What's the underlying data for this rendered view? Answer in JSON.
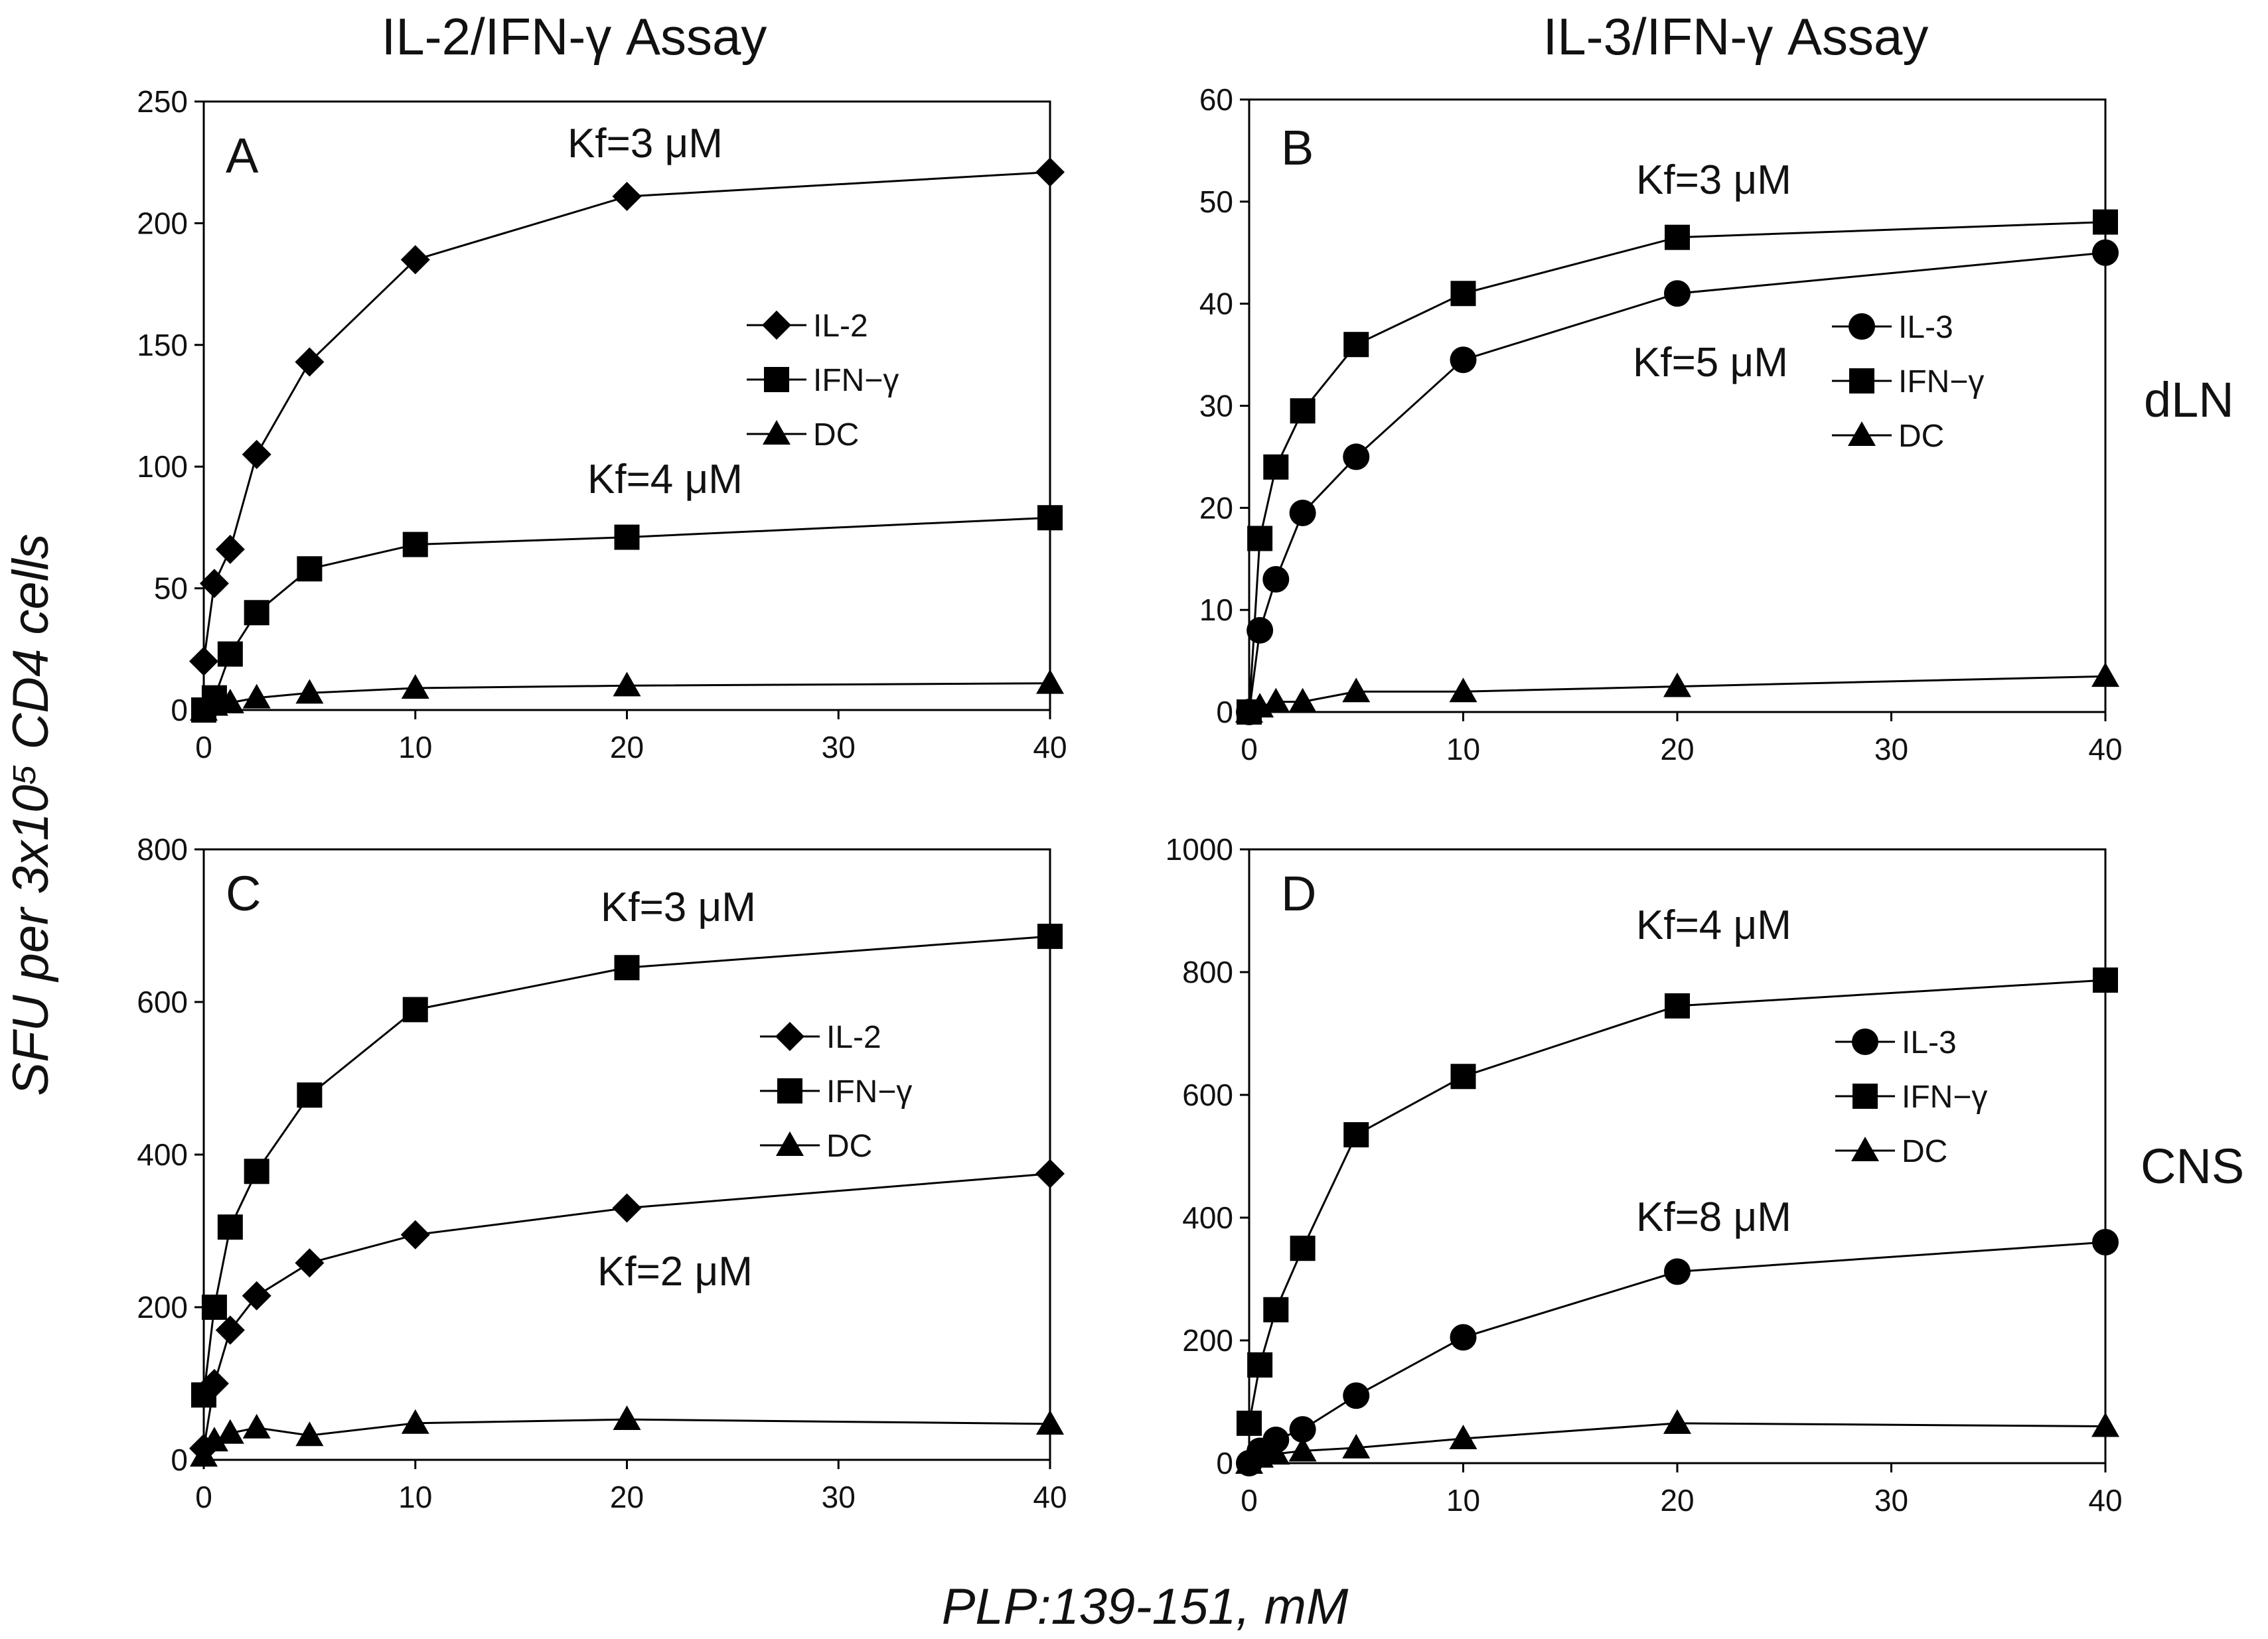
{
  "figure": {
    "column_titles": [
      "IL-2/IFN-γ Assay",
      "IL-3/IFN-γ Assay"
    ],
    "row_labels": [
      "dLN",
      "CNS"
    ],
    "ylabel": "SFU per 3x10⁵ CD4 cells",
    "xlabel": "PLP:139-151, mM"
  },
  "chart_data": [
    {
      "type": "line",
      "panel": "A",
      "x_ticks": [
        0,
        10,
        20,
        30,
        40
      ],
      "y_ticks": [
        0,
        50,
        100,
        150,
        200,
        250
      ],
      "xlim": [
        0,
        40
      ],
      "ylim": [
        0,
        250
      ],
      "series": [
        {
          "name": "IL-2",
          "marker": "diamond",
          "x": [
            0,
            0.5,
            1.25,
            2.5,
            5,
            10,
            20,
            40
          ],
          "y": [
            20,
            52,
            66,
            105,
            143,
            185,
            211,
            221
          ]
        },
        {
          "name": "IFN−γ",
          "marker": "square",
          "x": [
            0,
            0.5,
            1.25,
            2.5,
            5,
            10,
            20,
            40
          ],
          "y": [
            0,
            5,
            23,
            40,
            58,
            68,
            71,
            79
          ]
        },
        {
          "name": "DC",
          "marker": "triangle",
          "x": [
            0,
            0.5,
            1.25,
            2.5,
            5,
            10,
            20,
            40
          ],
          "y": [
            0,
            2,
            3,
            5,
            7,
            9,
            10,
            11
          ]
        }
      ],
      "annotations": [
        "Kf=3 μM",
        "Kf=4 μM"
      ]
    },
    {
      "type": "line",
      "panel": "B",
      "x_ticks": [
        0,
        10,
        20,
        30,
        40
      ],
      "y_ticks": [
        0,
        10,
        20,
        30,
        40,
        50,
        60
      ],
      "xlim": [
        0,
        40
      ],
      "ylim": [
        0,
        60
      ],
      "series": [
        {
          "name": "IL-3",
          "marker": "circle",
          "x": [
            0,
            0.5,
            1.25,
            2.5,
            5,
            10,
            20,
            40
          ],
          "y": [
            0,
            8,
            13,
            19.5,
            25,
            34.5,
            41,
            45
          ]
        },
        {
          "name": "IFN−γ",
          "marker": "square",
          "x": [
            0,
            0.5,
            1.25,
            2.5,
            5,
            10,
            20,
            40
          ],
          "y": [
            0,
            17,
            24,
            29.5,
            36,
            41,
            46.5,
            48
          ]
        },
        {
          "name": "DC",
          "marker": "triangle",
          "x": [
            0,
            0.5,
            1.25,
            2.5,
            5,
            10,
            20,
            40
          ],
          "y": [
            0,
            0.5,
            1,
            1,
            2,
            2,
            2.5,
            3.5
          ]
        }
      ],
      "annotations": [
        "Kf=3 μM",
        "Kf=5 μM"
      ]
    },
    {
      "type": "line",
      "panel": "C",
      "x_ticks": [
        0,
        10,
        20,
        30,
        40
      ],
      "y_ticks": [
        0,
        200,
        400,
        600,
        800
      ],
      "xlim": [
        0,
        40
      ],
      "ylim": [
        0,
        800
      ],
      "series": [
        {
          "name": "IL-2",
          "marker": "diamond",
          "x": [
            0,
            0.5,
            1.25,
            2.5,
            5,
            10,
            20,
            40
          ],
          "y": [
            15,
            100,
            170,
            215,
            258,
            295,
            330,
            375
          ]
        },
        {
          "name": "IFN−γ",
          "marker": "square",
          "x": [
            0,
            0.5,
            1.25,
            2.5,
            5,
            10,
            20,
            40
          ],
          "y": [
            85,
            200,
            305,
            378,
            478,
            590,
            645,
            686
          ]
        },
        {
          "name": "DC",
          "marker": "triangle",
          "x": [
            0,
            0.5,
            1.25,
            2.5,
            5,
            10,
            20,
            40
          ],
          "y": [
            5,
            25,
            35,
            42,
            32,
            48,
            53,
            47
          ]
        }
      ],
      "annotations": [
        "Kf=3 μM",
        "Kf=2 μM"
      ]
    },
    {
      "type": "line",
      "panel": "D",
      "x_ticks": [
        0,
        10,
        20,
        30,
        40
      ],
      "y_ticks": [
        0,
        200,
        400,
        600,
        800,
        1000
      ],
      "xlim": [
        0,
        40
      ],
      "ylim": [
        0,
        1000
      ],
      "series": [
        {
          "name": "IL-3",
          "marker": "circle",
          "x": [
            0,
            0.5,
            1.25,
            2.5,
            5,
            10,
            20,
            40
          ],
          "y": [
            0,
            20,
            38,
            55,
            110,
            205,
            312,
            360
          ]
        },
        {
          "name": "IFN−γ",
          "marker": "square",
          "x": [
            0,
            0.5,
            1.25,
            2.5,
            5,
            10,
            20,
            40
          ],
          "y": [
            65,
            160,
            250,
            350,
            535,
            630,
            745,
            787
          ]
        },
        {
          "name": "DC",
          "marker": "triangle",
          "x": [
            0,
            0.5,
            1.25,
            2.5,
            5,
            10,
            20,
            40
          ],
          "y": [
            0,
            10,
            15,
            20,
            25,
            40,
            65,
            60
          ]
        }
      ],
      "annotations": [
        "Kf=4 μM",
        "Kf=8 μM"
      ]
    }
  ]
}
